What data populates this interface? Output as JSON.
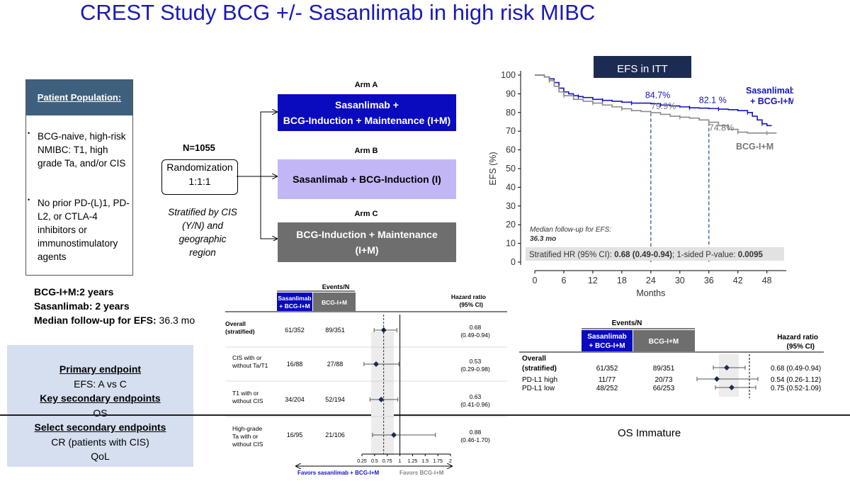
{
  "title": "CREST Study BCG +/- Sasanlimab in high risk MIBC",
  "patient_population": {
    "heading": "Patient Population:",
    "bullet": "•",
    "items": [
      "BCG-naive, high-risk NMIBC: T1, high grade Ta, and/or CIS",
      "No prior PD-(L)1, PD-L2, or CTLA-4 inhibitors or immunostimulatory agents"
    ]
  },
  "randomization": {
    "n_label": "N=1055",
    "box_line1": "Randomization",
    "box_line2": "1:1:1",
    "stratified": "Stratified by CIS (Y/N) and geographic region"
  },
  "arms": [
    {
      "label": "Arm A",
      "line1": "Sasanlimab  +",
      "line2": "BCG-Induction + Maintenance (I+M)",
      "color": "#0a0abf"
    },
    {
      "label": "Arm B",
      "line1": "Sasanlimab + BCG-Induction (I)",
      "line2": "",
      "color": "#c3b6f6"
    },
    {
      "label": "Arm C",
      "line1": "BCG-Induction + Maintenance",
      "line2": "(I+M)",
      "color": "#6e6e6e"
    }
  ],
  "info": {
    "line1": "BCG-I+M:2 years",
    "line2": "Sasanlimab: 2 years",
    "line3_bold": "Median follow-up for EFS:",
    "line3_rest": " 36.3 mo"
  },
  "endpoints": {
    "primary_h": "Primary endpoint",
    "primary": "EFS: A vs C",
    "key_h": "Key secondary endpoints",
    "key": "OS",
    "select_h": "Select secondary endpoints",
    "select1": "CR (patients with CIS)",
    "select2": "QoL"
  },
  "efs_label": "EFS in ITT",
  "os_immature": "OS Immature",
  "chart_data": [
    {
      "type": "line",
      "title": "EFS in ITT",
      "xlabel": "Months",
      "ylabel": "EFS (%)",
      "xlim": [
        0,
        52
      ],
      "ylim": [
        0,
        100
      ],
      "xticks": [
        0,
        6,
        12,
        18,
        24,
        30,
        36,
        42,
        48
      ],
      "yticks": [
        0,
        10,
        20,
        30,
        40,
        50,
        60,
        70,
        80,
        90,
        100
      ],
      "series": [
        {
          "name": "Sasanlimab + BCG-I+M",
          "color": "#1515c0",
          "x": [
            0,
            2,
            3,
            4,
            5,
            6,
            7,
            8,
            9,
            10,
            12,
            14,
            16,
            18,
            20,
            22,
            24,
            26,
            28,
            30,
            32,
            34,
            36,
            38,
            40,
            42,
            44,
            45,
            46,
            47,
            48,
            49
          ],
          "y": [
            100,
            99,
            98,
            96,
            93,
            91,
            90,
            89,
            88.5,
            88,
            87,
            86.5,
            86,
            85.5,
            85,
            85,
            84.7,
            84,
            83.5,
            83,
            82.5,
            82.3,
            82.1,
            81.8,
            81.5,
            81,
            80,
            78,
            76,
            74,
            73,
            73
          ]
        },
        {
          "name": "BCG-I+M",
          "color": "#8a8a8a",
          "x": [
            0,
            2,
            3,
            4,
            5,
            6,
            8,
            10,
            12,
            14,
            16,
            18,
            20,
            22,
            24,
            26,
            28,
            30,
            32,
            34,
            36,
            38,
            40,
            42,
            44,
            46,
            48,
            50
          ],
          "y": [
            100,
            99,
            97,
            94,
            91,
            89,
            87,
            86,
            85,
            84,
            83,
            82,
            81,
            80.5,
            79.9,
            79,
            78,
            77.5,
            77,
            76,
            74.8,
            73,
            71,
            69.5,
            69,
            69,
            69,
            69
          ]
        }
      ],
      "annotations": [
        {
          "text": "84.7%",
          "x": 24,
          "y": 84.7
        },
        {
          "text": "82.1 %",
          "x": 36,
          "y": 82.1
        },
        {
          "text": "79.9%",
          "x": 24,
          "y": 79.9
        },
        {
          "text": "74.8%",
          "x": 36,
          "y": 74.8
        }
      ],
      "legend": [
        "Sasanlimab",
        "+ BCG-I+M",
        "BCG-I+M"
      ],
      "followup_line1": "Median follow-up for EFS:",
      "followup_line2": "36.3 mo",
      "hr_prefix": "Stratified HR (95% CI): ",
      "hr_value": "0.68 (0.49-0.94)",
      "hr_mid": "; 1-sided P-value: ",
      "hr_p": "0.0095"
    },
    {
      "type": "forest",
      "header_events": "Events/N",
      "col1_line1": "Sasanlimab",
      "col1_line2": "+ BCG-I+M",
      "col2": "BCG-I+M",
      "hr_header1": "Hazard ratio",
      "hr_header2": "(95% CI)",
      "xticks": [
        "0.25",
        "0.5",
        "0.75",
        "1",
        "1.25",
        "1.5",
        "1.75",
        "2"
      ],
      "xlim": [
        0.25,
        2
      ],
      "favors_left": "Favors sasanlimab + BCG-I+M",
      "favors_right": "Favors BCG-I+M",
      "rows": [
        {
          "label1": "Overall",
          "label2": "(stratified)",
          "bold": true,
          "a": "61/352",
          "c": "89/351",
          "hr": 0.68,
          "lo": 0.49,
          "hi": 0.94,
          "hr_text": "0.68",
          "ci_text": "(0.49-0.94)"
        },
        {
          "label1": "CIS with or",
          "label2": "without Ta/T1",
          "bold": false,
          "a": "16/88",
          "c": "27/88",
          "hr": 0.53,
          "lo": 0.29,
          "hi": 0.98,
          "hr_text": "0.53",
          "ci_text": "(0.29-0.98)"
        },
        {
          "label1": "T1 with or",
          "label2": "without CIS",
          "bold": false,
          "a": "34/204",
          "c": "52/194",
          "hr": 0.63,
          "lo": 0.41,
          "hi": 0.96,
          "hr_text": "0.63",
          "ci_text": "(0.41-0.96)"
        },
        {
          "label1": "High-grade",
          "label2": "Ta with or",
          "label3": "without CIS",
          "bold": false,
          "a": "16/95",
          "c": "21/106",
          "hr": 0.88,
          "lo": 0.46,
          "hi": 1.7,
          "hr_text": "0.88",
          "ci_text": "(0.46-1.70)"
        }
      ]
    },
    {
      "type": "forest",
      "header_events": "Events/N",
      "col1_line1": "Sasanlimab",
      "col1_line2": "+ BCG-I+M",
      "col2": "BCG-I+M",
      "hr_header1": "Hazard ratio",
      "hr_header2": "(95% CI)",
      "rows": [
        {
          "label1": "Overall",
          "label2": "(stratified)",
          "bold": true,
          "a": "61/352",
          "c": "89/351",
          "hr": 0.68,
          "lo": 0.49,
          "hi": 0.94,
          "hr_text": "0.68 (0.49-0.94)"
        },
        {
          "label1": "PD-L1 high",
          "bold": false,
          "a": "11/77",
          "c": "20/73",
          "hr": 0.54,
          "lo": 0.26,
          "hi": 1.12,
          "hr_text": "0.54 (0.26-1.12)"
        },
        {
          "label1": "PD-L1 low",
          "bold": false,
          "a": "48/252",
          "c": "66/253",
          "hr": 0.75,
          "lo": 0.52,
          "hi": 1.09,
          "hr_text": "0.75 (0.52-1.09)"
        }
      ]
    }
  ]
}
